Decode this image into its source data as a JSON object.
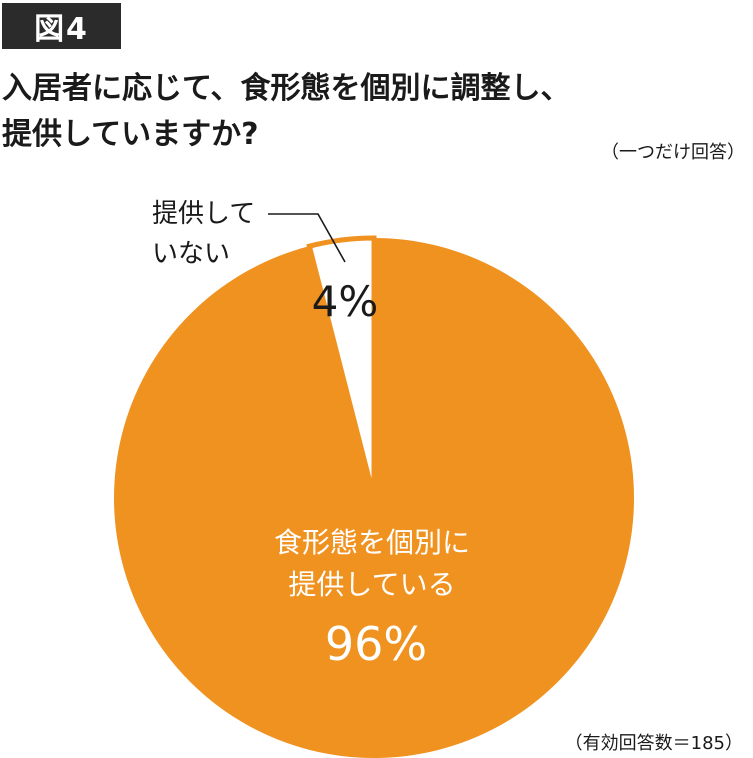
{
  "figure_label": "図4",
  "title_lines": [
    "入居者に応じて、食形態を個別に調整し、",
    "提供していますか?"
  ],
  "answer_note": "（一つだけ回答）",
  "sample_note": "（有効回答数＝185）",
  "colors": {
    "provided": "#F09220",
    "not_provided": "#FFFFFF",
    "text_dark": "#1A1A1A",
    "text_light": "#FFFFFF"
  },
  "chart_data": {
    "type": "pie",
    "title": "入居者に応じて、食形態を個別に調整し、提供していますか?",
    "start": "12 o'clock",
    "direction": "clockwise",
    "slices": [
      {
        "label_lines": [
          "提供して",
          "いない"
        ],
        "value": 4,
        "value_label": "4%",
        "color": "#FFFFFF"
      },
      {
        "label_lines": [
          "食形態を個別に",
          "提供している"
        ],
        "value": 96,
        "value_label": "96%",
        "color": "#F09220"
      }
    ]
  }
}
